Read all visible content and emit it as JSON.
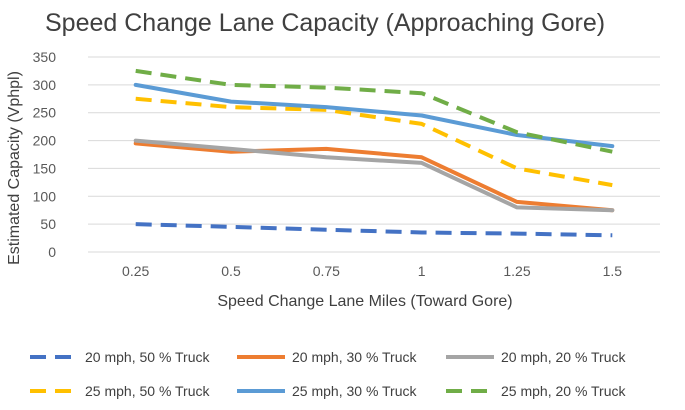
{
  "chart_data": {
    "type": "line",
    "title": "Speed Change Lane Capacity  (Approaching Gore)",
    "xlabel": "Speed Change Lane Miles (Toward Gore)",
    "ylabel": "Estimated Capacity (Vphpl)",
    "categories": [
      "0.25",
      "0.5",
      "0.75",
      "1",
      "1.25",
      "1.5"
    ],
    "y_ticks": [
      "0",
      "50",
      "100",
      "150",
      "200",
      "250",
      "300",
      "350"
    ],
    "ylim": [
      0,
      350
    ],
    "grid": true,
    "legend_position": "bottom",
    "series": [
      {
        "name": "20 mph, 50 % Truck",
        "color": "#4472C4",
        "dashed": true,
        "values": [
          50,
          45,
          40,
          35,
          33,
          30
        ]
      },
      {
        "name": "20 mph, 30 % Truck",
        "color": "#ED7D31",
        "dashed": false,
        "values": [
          195,
          180,
          185,
          170,
          90,
          75
        ]
      },
      {
        "name": "20 mph, 20 % Truck",
        "color": "#A5A5A5",
        "dashed": false,
        "values": [
          200,
          185,
          170,
          160,
          80,
          75
        ]
      },
      {
        "name": "25 mph, 50 % Truck",
        "color": "#FFC000",
        "dashed": true,
        "values": [
          275,
          260,
          255,
          230,
          150,
          120
        ]
      },
      {
        "name": "25 mph, 30 % Truck",
        "color": "#5B9BD5",
        "dashed": false,
        "values": [
          300,
          270,
          260,
          245,
          210,
          190
        ]
      },
      {
        "name": "25 mph, 20 % Truck",
        "color": "#70AD47",
        "dashed": true,
        "values": [
          325,
          300,
          295,
          285,
          215,
          180
        ]
      }
    ]
  }
}
